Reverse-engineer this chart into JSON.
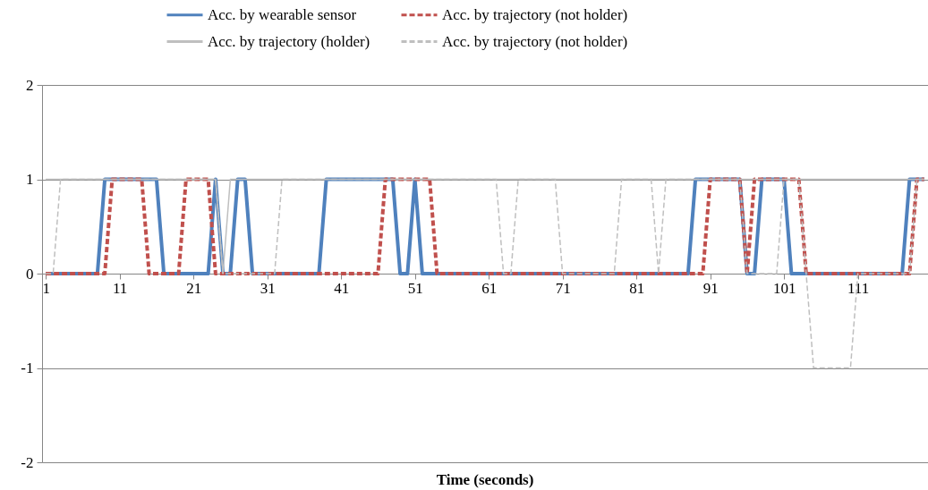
{
  "chart_data": {
    "type": "line",
    "xlabel": "Time (seconds)",
    "x": [
      1,
      2,
      3,
      4,
      5,
      6,
      7,
      8,
      9,
      10,
      11,
      12,
      13,
      14,
      15,
      16,
      17,
      18,
      19,
      20,
      21,
      22,
      23,
      24,
      25,
      26,
      27,
      28,
      29,
      30,
      31,
      32,
      33,
      34,
      35,
      36,
      37,
      38,
      39,
      40,
      41,
      42,
      43,
      44,
      45,
      46,
      47,
      48,
      49,
      50,
      51,
      52,
      53,
      54,
      55,
      56,
      57,
      58,
      59,
      60,
      61,
      62,
      63,
      64,
      65,
      66,
      67,
      68,
      69,
      70,
      71,
      72,
      73,
      74,
      75,
      76,
      77,
      78,
      79,
      80,
      81,
      82,
      83,
      84,
      85,
      86,
      87,
      88,
      89,
      90,
      91,
      92,
      93,
      94,
      95,
      96,
      97,
      98,
      99,
      100,
      101,
      102,
      103,
      104,
      105,
      106,
      107,
      108,
      109,
      110,
      111,
      112,
      113,
      114,
      115,
      116,
      117,
      118,
      119,
      120
    ],
    "xlim": [
      0.5,
      120.5
    ],
    "xticks": [
      1,
      11,
      21,
      31,
      41,
      51,
      61,
      71,
      81,
      91,
      101,
      111
    ],
    "ylim": [
      -2,
      2
    ],
    "yticks": [
      -2,
      -1,
      0,
      1,
      2
    ],
    "grid": "y",
    "legend": "top",
    "series": [
      {
        "name": "Acc. by wearable sensor",
        "color": "#4f81bd",
        "line_style": "solid",
        "values": [
          0,
          0,
          0,
          0,
          0,
          0,
          0,
          0,
          1,
          1,
          1,
          1,
          1,
          1,
          1,
          1,
          0,
          0,
          0,
          0,
          0,
          0,
          0,
          1,
          0,
          0,
          1,
          1,
          0,
          0,
          0,
          0,
          0,
          0,
          0,
          0,
          0,
          0,
          1,
          1,
          1,
          1,
          1,
          1,
          1,
          1,
          1,
          1,
          0,
          0,
          1,
          0,
          0,
          0,
          0,
          0,
          0,
          0,
          0,
          0,
          0,
          0,
          0,
          0,
          0,
          0,
          0,
          0,
          0,
          0,
          0,
          0,
          0,
          0,
          0,
          0,
          0,
          0,
          0,
          0,
          0,
          0,
          0,
          0,
          0,
          0,
          0,
          0,
          1,
          1,
          1,
          1,
          1,
          1,
          1,
          0,
          0,
          1,
          1,
          1,
          1,
          0,
          0,
          0,
          0,
          0,
          0,
          0,
          0,
          0,
          0,
          0,
          0,
          0,
          0,
          0,
          0,
          1,
          1,
          1
        ]
      },
      {
        "name": "Acc. by trajectory   (not holder)",
        "color": "#c0504d",
        "line_style": "dashed",
        "values": [
          0,
          0,
          0,
          0,
          0,
          0,
          0,
          0,
          0,
          1,
          1,
          1,
          1,
          1,
          0,
          0,
          0,
          0,
          0,
          1,
          1,
          1,
          1,
          0,
          0,
          0,
          0,
          0,
          0,
          0,
          0,
          0,
          0,
          0,
          0,
          0,
          0,
          0,
          0,
          0,
          0,
          0,
          0,
          0,
          0,
          0,
          1,
          1,
          1,
          1,
          1,
          1,
          1,
          0,
          0,
          0,
          0,
          0,
          0,
          0,
          0,
          0,
          0,
          0,
          0,
          0,
          0,
          0,
          0,
          0,
          0,
          0,
          0,
          0,
          0,
          0,
          0,
          0,
          0,
          0,
          0,
          0,
          0,
          0,
          0,
          0,
          0,
          0,
          0,
          0,
          1,
          1,
          1,
          1,
          1,
          0,
          1,
          1,
          1,
          1,
          1,
          1,
          1,
          0,
          0,
          0,
          0,
          0,
          0,
          0,
          0,
          0,
          0,
          0,
          0,
          0,
          0,
          0,
          1,
          1
        ]
      },
      {
        "name": "Acc. by trajectory   (holder)",
        "color": "#bfbfbf",
        "line_style": "solid",
        "values": [
          1,
          1,
          1,
          1,
          1,
          1,
          1,
          1,
          1,
          1,
          1,
          1,
          1,
          1,
          1,
          1,
          1,
          1,
          1,
          1,
          1,
          1,
          1,
          1,
          0,
          1,
          1,
          1,
          1,
          1,
          1,
          1,
          1,
          1,
          1,
          1,
          1,
          1,
          1,
          1,
          1,
          1,
          1,
          1,
          1,
          1,
          1,
          1,
          1,
          1,
          1,
          1,
          1,
          1,
          1,
          1,
          1,
          1,
          1,
          1,
          1,
          1,
          1,
          1,
          1,
          1,
          1,
          1,
          1,
          1,
          1,
          1,
          1,
          1,
          1,
          1,
          1,
          1,
          1,
          1,
          1,
          1,
          1,
          1,
          1,
          1,
          1,
          1,
          1,
          1,
          1,
          1,
          1,
          1,
          1,
          1,
          1,
          1,
          1,
          1,
          1,
          1,
          1,
          1,
          1,
          1,
          1,
          1,
          1,
          1,
          1,
          1,
          1,
          1,
          1,
          1,
          1,
          1,
          1,
          1
        ]
      },
      {
        "name": "Acc. by trajectory   (not holder)",
        "color": "#bfbfbf",
        "line_style": "dashed",
        "values": [
          0,
          0,
          1,
          1,
          1,
          1,
          1,
          1,
          1,
          1,
          1,
          1,
          1,
          1,
          1,
          1,
          1,
          1,
          1,
          1,
          1,
          1,
          1,
          1,
          0,
          0,
          0,
          0,
          0,
          0,
          0,
          0,
          1,
          1,
          1,
          1,
          1,
          1,
          1,
          1,
          1,
          1,
          1,
          1,
          1,
          1,
          1,
          1,
          1,
          1,
          1,
          1,
          1,
          1,
          1,
          1,
          1,
          1,
          1,
          1,
          1,
          1,
          0,
          0,
          1,
          1,
          1,
          1,
          1,
          1,
          0,
          0,
          0,
          0,
          0,
          0,
          0,
          0,
          1,
          1,
          1,
          1,
          1,
          0,
          1,
          1,
          1,
          1,
          1,
          1,
          1,
          1,
          1,
          1,
          1,
          0,
          0,
          0,
          0,
          0,
          1,
          1,
          1,
          0,
          -1,
          -1,
          -1,
          -1,
          -1,
          -1,
          0,
          0,
          0,
          0,
          0,
          0,
          0,
          0,
          1,
          1
        ]
      }
    ]
  }
}
